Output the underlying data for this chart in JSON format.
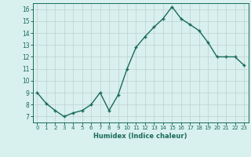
{
  "x": [
    0,
    1,
    2,
    3,
    4,
    5,
    6,
    7,
    8,
    9,
    10,
    11,
    12,
    13,
    14,
    15,
    16,
    17,
    18,
    19,
    20,
    21,
    22,
    23
  ],
  "y": [
    9.0,
    8.1,
    7.5,
    7.0,
    7.3,
    7.5,
    8.0,
    9.0,
    7.5,
    8.8,
    11.0,
    12.8,
    13.7,
    14.5,
    15.2,
    16.2,
    15.2,
    14.7,
    14.2,
    13.2,
    12.0,
    12.0,
    12.0,
    11.3
  ],
  "line_color": "#1a6b5a",
  "marker": "+",
  "markersize": 3,
  "linewidth": 1.0,
  "markeredgewidth": 1.0,
  "xlabel": "Humidex (Indice chaleur)",
  "xlim": [
    -0.5,
    23.5
  ],
  "ylim": [
    6.5,
    16.5
  ],
  "yticks": [
    7,
    8,
    9,
    10,
    11,
    12,
    13,
    14,
    15,
    16
  ],
  "xticks": [
    0,
    1,
    2,
    3,
    4,
    5,
    6,
    7,
    8,
    9,
    10,
    11,
    12,
    13,
    14,
    15,
    16,
    17,
    18,
    19,
    20,
    21,
    22,
    23
  ],
  "xtick_labels": [
    "0",
    "1",
    "2",
    "3",
    "4",
    "5",
    "6",
    "7",
    "8",
    "9",
    "10",
    "11",
    "12",
    "13",
    "14",
    "15",
    "16",
    "17",
    "18",
    "19",
    "20",
    "21",
    "22",
    "23"
  ],
  "bg_color": "#d8f0ee",
  "grid_color": "#c0d0d0",
  "xlabel_fontsize": 6.0,
  "xtick_fontsize": 5.0,
  "ytick_fontsize": 5.5
}
